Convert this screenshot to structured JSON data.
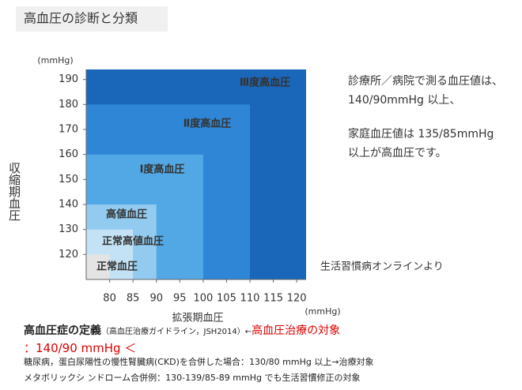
{
  "title": "高血圧の診断と分類",
  "chart_data": {
    "type": "region",
    "y_label": "収縮期血圧",
    "y_unit": "(mmHg)",
    "x_label": "拡張期血圧",
    "x_unit": "(mmHg)",
    "xlim": [
      75,
      122
    ],
    "ylim": [
      110,
      194
    ],
    "xticks": [
      80,
      85,
      90,
      95,
      100,
      105,
      110,
      115,
      120
    ],
    "yticks": [
      120,
      130,
      140,
      150,
      160,
      170,
      180,
      190
    ],
    "regions": [
      {
        "name": "Ⅲ度高血圧",
        "color": "#1a66b8",
        "x": 122,
        "y": 194
      },
      {
        "name": "Ⅱ度高血圧",
        "color": "#2f86d6",
        "x": 110,
        "y": 180
      },
      {
        "name": "Ⅰ度高血圧",
        "color": "#52a8e4",
        "x": 100,
        "y": 160
      },
      {
        "name": "高値血圧",
        "color": "#92cbef",
        "x": 90,
        "y": 140
      },
      {
        "name": "正常高値血圧",
        "color": "#c4e2f6",
        "x": 85,
        "y": 130
      },
      {
        "name": "正常血圧",
        "color": "#e4e4e4",
        "x": 80,
        "y": 120
      }
    ]
  },
  "note": [
    "診療所／病院で測る血圧値は、",
    "140/90mmHg 以上、",
    "家庭血圧値は 135/85mmHg",
    "以上が高血圧です。"
  ],
  "source": "生活習慣病オンラインより",
  "definition": {
    "heading": "高血圧症の定義",
    "sub": "（高血圧治療ガイドライン，JSH2014）←",
    "target": "高血圧治療の対象",
    "threshold": "：140/90 mmHg ＜",
    "lines": [
      "糖尿病，蛋白尿陽性の慢性腎臓病(CKD)を合併した場合：130/80 mmHg 以上→治療対象",
      "メタボリックシ ンドローム合併例：130-139/85-89 mmHg でも生活習慣修正の対象"
    ]
  }
}
